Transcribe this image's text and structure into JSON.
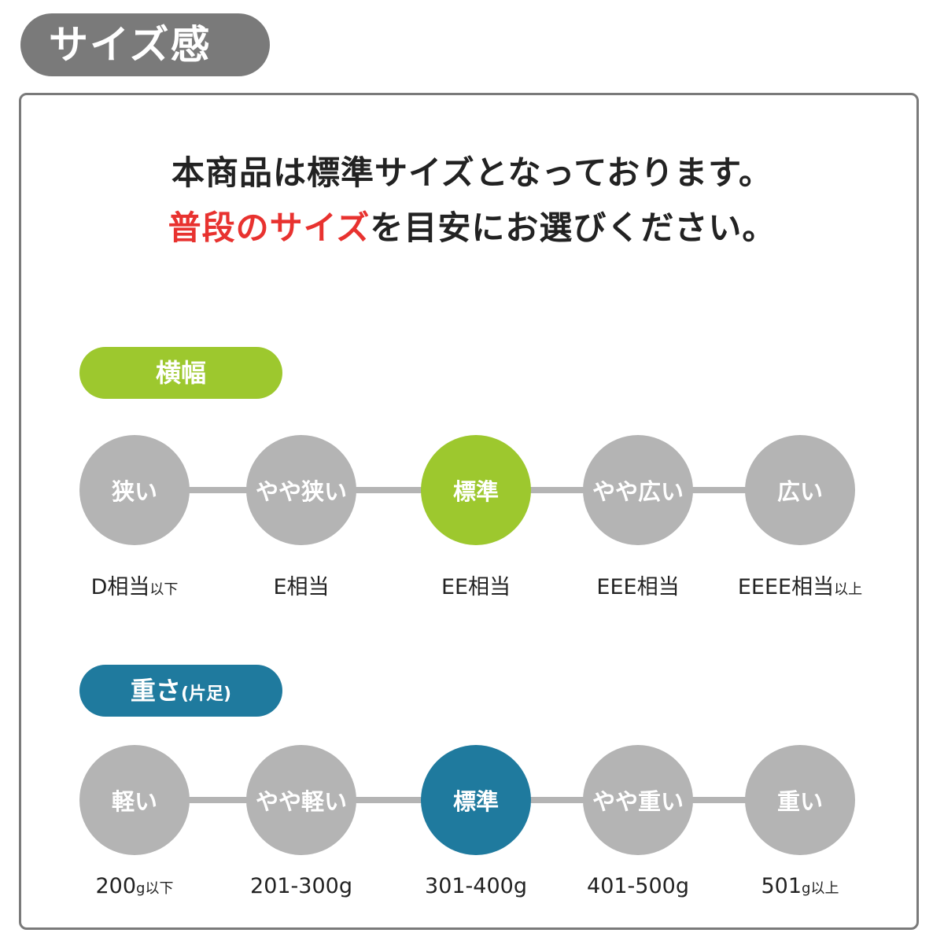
{
  "header": {
    "title": "サイズ感"
  },
  "message": {
    "line1": "本商品は標準サイズとなっております。",
    "line2_highlight": "普段のサイズ",
    "line2_rest": "を目安にお選びください。"
  },
  "colors": {
    "width_accent": "#9dc82e",
    "weight_accent": "#1f7a9e",
    "inactive": "#b4b4b4",
    "highlight_text": "#e8322f"
  },
  "width_scale": {
    "label": "横幅",
    "selected_index": 2,
    "steps": [
      {
        "name": "狭い",
        "value": "D相当",
        "suffix": "以下"
      },
      {
        "name": "やや狭い",
        "value": "E相当",
        "suffix": ""
      },
      {
        "name": "標準",
        "value": "EE相当",
        "suffix": ""
      },
      {
        "name": "やや広い",
        "value": "EEE相当",
        "suffix": ""
      },
      {
        "name": "広い",
        "value": "EEEE相当",
        "suffix": "以上"
      }
    ]
  },
  "weight_scale": {
    "label": "重さ",
    "label_note": "(片足)",
    "selected_index": 2,
    "steps": [
      {
        "name": "軽い",
        "value": "200",
        "suffix": "g以下"
      },
      {
        "name": "やや軽い",
        "value": "201-300g",
        "suffix": ""
      },
      {
        "name": "標準",
        "value": "301-400g",
        "suffix": ""
      },
      {
        "name": "やや重い",
        "value": "401-500g",
        "suffix": ""
      },
      {
        "name": "重い",
        "value": "501",
        "suffix": "g以上"
      }
    ]
  }
}
